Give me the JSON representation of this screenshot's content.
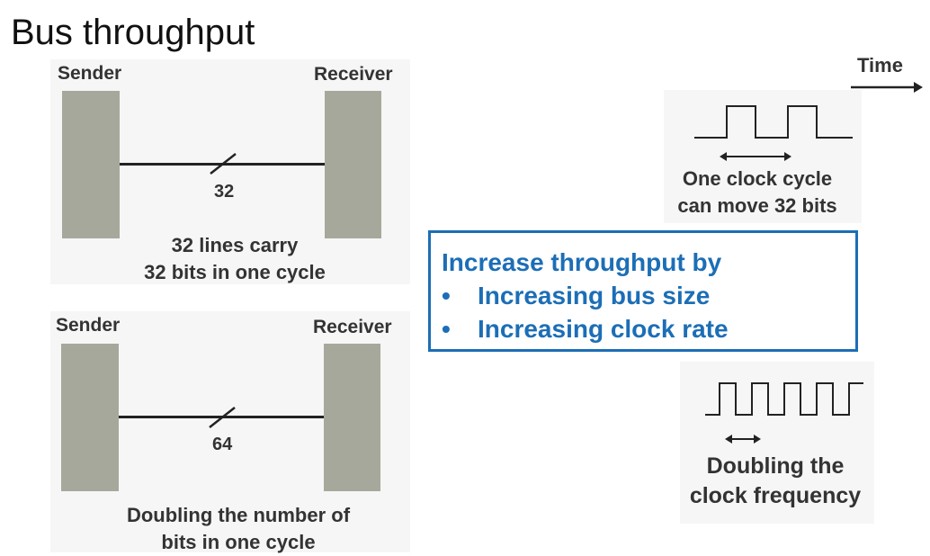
{
  "title": "Bus throughput",
  "top_panel": {
    "sender_label": "Sender",
    "receiver_label": "Receiver",
    "bus_width": "32",
    "caption_line1": "32 lines carry",
    "caption_line2": "32 bits in one cycle"
  },
  "bottom_panel": {
    "sender_label": "Sender",
    "receiver_label": "Receiver",
    "bus_width": "64",
    "caption_line1": "Doubling the number of",
    "caption_line2": "bits in one cycle"
  },
  "timing": {
    "time_label": "Time",
    "slow_caption_line1": "One clock cycle",
    "slow_caption_line2": "can move 32 bits",
    "fast_caption_line1": "Doubling the",
    "fast_caption_line2": "clock frequency"
  },
  "callout": {
    "heading": "Increase throughput by",
    "bullet_char": "•",
    "items": [
      "Increasing bus size",
      "Increasing clock rate"
    ]
  },
  "colors": {
    "accent": "#1c6eb6",
    "block": "#a6a89b",
    "text": "#333333"
  }
}
